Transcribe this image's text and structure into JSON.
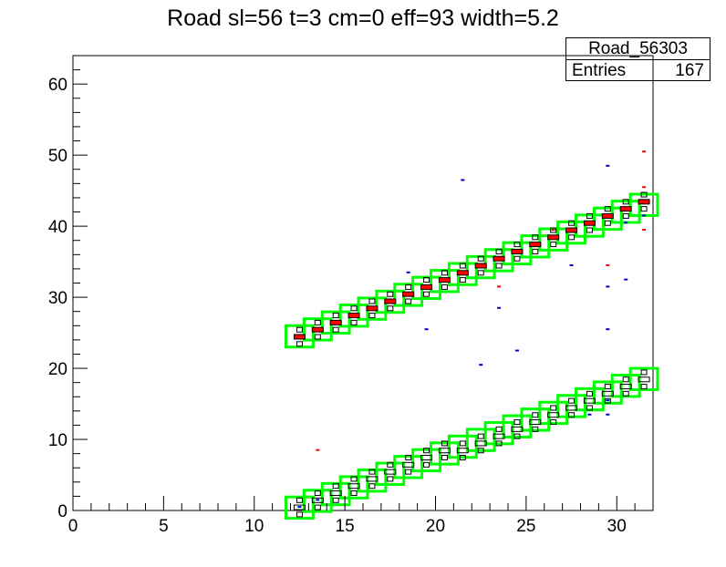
{
  "title": "Road sl=56 t=3 cm=0 eff=93 width=5.2",
  "stats": {
    "name": "Road_56303",
    "entries_label": "Entries",
    "entries_value": "167"
  },
  "colors": {
    "road": "#00ff00",
    "hit_main": "#ff0000",
    "hit_alt": "#0000cc",
    "outline": "#000000"
  },
  "chart_data": {
    "type": "heatmap",
    "title": "Road sl=56 t=3 cm=0 eff=93 width=5.2",
    "xlabel": "",
    "ylabel": "",
    "xlim": [
      0,
      32
    ],
    "ylim": [
      0,
      64
    ],
    "grid": false,
    "x_ticks": [
      0,
      5,
      10,
      15,
      20,
      25,
      30
    ],
    "y_ticks": [
      0,
      10,
      20,
      30,
      40,
      50,
      60
    ],
    "road_lines": [
      {
        "x_start": 12,
        "y_start": 24.5,
        "x_end": 32,
        "y_end": 43,
        "window_width": 1.5
      },
      {
        "x_start": 12,
        "y_start": 0.4,
        "x_end": 32,
        "y_end": 18.5,
        "window_width": 1.5
      }
    ],
    "hits": [
      [
        12.5,
        24.5,
        "r"
      ],
      [
        13.5,
        25.5,
        "r"
      ],
      [
        14.5,
        26.5,
        "r"
      ],
      [
        15.5,
        27.5,
        "r"
      ],
      [
        16.5,
        28.5,
        "r"
      ],
      [
        17.5,
        29.5,
        "r"
      ],
      [
        18.5,
        30.5,
        "r"
      ],
      [
        19.5,
        31.5,
        "r"
      ],
      [
        20.5,
        32.5,
        "r"
      ],
      [
        21.5,
        33.5,
        "r"
      ],
      [
        22.5,
        34.5,
        "r"
      ],
      [
        23.5,
        35.5,
        "r"
      ],
      [
        24.5,
        36.5,
        "r"
      ],
      [
        25.5,
        37.5,
        "r"
      ],
      [
        26.5,
        38.5,
        "r"
      ],
      [
        27.5,
        39.5,
        "r"
      ],
      [
        28.5,
        40.5,
        "r"
      ],
      [
        29.5,
        41.5,
        "r"
      ],
      [
        30.5,
        42.5,
        "r"
      ],
      [
        31.5,
        43.5,
        "r"
      ],
      [
        13.5,
        8.5,
        "r"
      ],
      [
        21.5,
        46.5,
        "b"
      ],
      [
        18.5,
        33.5,
        "b"
      ],
      [
        19.5,
        25.5,
        "b"
      ],
      [
        22.5,
        20.5,
        "b"
      ],
      [
        23.5,
        28.5,
        "b"
      ],
      [
        24.5,
        22.5,
        "b"
      ],
      [
        27.5,
        34.5,
        "b"
      ],
      [
        29.5,
        48.5,
        "b"
      ],
      [
        29.5,
        31.5,
        "b"
      ],
      [
        29.5,
        25.5,
        "b"
      ],
      [
        30.5,
        32.5,
        "b"
      ],
      [
        31.5,
        50.5,
        "r"
      ],
      [
        31.5,
        45.5,
        "r"
      ],
      [
        29.5,
        34.5,
        "r"
      ],
      [
        26.5,
        39.5,
        "r"
      ],
      [
        23.5,
        31.5,
        "r"
      ],
      [
        31.5,
        39.5,
        "r"
      ],
      [
        12.5,
        0.5,
        "b"
      ],
      [
        13.5,
        1.5,
        "b"
      ],
      [
        29.5,
        13.5,
        "b"
      ],
      [
        29.5,
        15.5,
        "b"
      ],
      [
        28.5,
        13.5,
        "b"
      ],
      [
        30.5,
        40.5,
        "b"
      ],
      [
        31.5,
        41.5,
        "b"
      ]
    ]
  }
}
